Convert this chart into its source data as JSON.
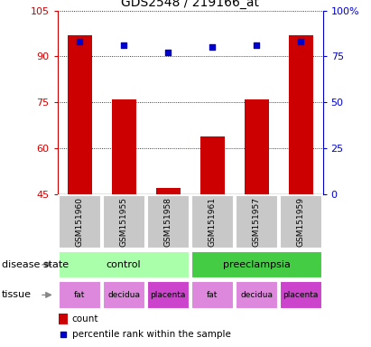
{
  "title": "GDS2548 / 219166_at",
  "samples": [
    "GSM151960",
    "GSM151955",
    "GSM151958",
    "GSM151961",
    "GSM151957",
    "GSM151959"
  ],
  "counts": [
    97,
    76,
    47,
    64,
    76,
    97
  ],
  "percentile_ranks": [
    83,
    81,
    77,
    80,
    81,
    83
  ],
  "ylim_left": [
    45,
    105
  ],
  "ylim_right": [
    0,
    100
  ],
  "yticks_left": [
    45,
    60,
    75,
    90,
    105
  ],
  "yticks_right": [
    0,
    25,
    50,
    75,
    100
  ],
  "bar_color": "#cc0000",
  "dot_color": "#0000cc",
  "bar_width": 0.55,
  "disease_color_control": "#aaffaa",
  "disease_color_preeclampsia": "#44cc44",
  "tissue_color_fat": "#dd88dd",
  "tissue_color_decidua": "#dd88dd",
  "tissue_color_placenta": "#cc44cc",
  "sample_bg_color": "#c8c8c8",
  "fig_width": 4.11,
  "fig_height": 3.84,
  "dpi": 100
}
